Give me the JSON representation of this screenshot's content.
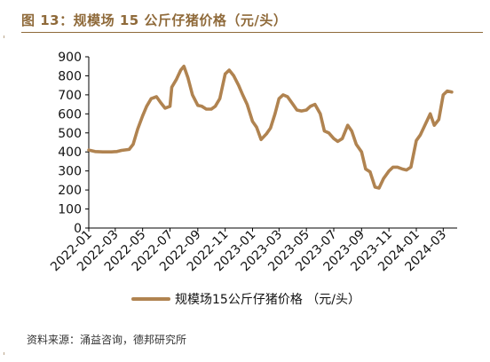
{
  "figure": {
    "title": "图 13：规模场 15 公斤仔猪价格（元/头）",
    "source": "资料来源：涌益咨询，德邦研究所"
  },
  "colors": {
    "series": "#b08350",
    "title": "#8f6a3a"
  },
  "chart_data": {
    "type": "line",
    "title": "",
    "xlabel": "",
    "ylabel": "",
    "ylim": [
      0,
      900
    ],
    "yticks": [
      0,
      100,
      200,
      300,
      400,
      500,
      600,
      700,
      800,
      900
    ],
    "xlim": [
      "2022-01",
      "2024-04"
    ],
    "xticks": [
      "2022-01",
      "2022-03",
      "2022-05",
      "2022-07",
      "2022-09",
      "2022-11",
      "2023-01",
      "2023-03",
      "2023-05",
      "2023-07",
      "2023-09",
      "2023-11",
      "2024-01",
      "2024-03"
    ],
    "legend_position": "bottom",
    "grid": false,
    "series": [
      {
        "name": "规模场15公斤仔猪价格 （元/头）",
        "points": [
          [
            "2022-01-01",
            410
          ],
          [
            "2022-01-15",
            402
          ],
          [
            "2022-02-01",
            400
          ],
          [
            "2022-02-20",
            400
          ],
          [
            "2022-03-05",
            402
          ],
          [
            "2022-03-15",
            408
          ],
          [
            "2022-04-01",
            413
          ],
          [
            "2022-04-10",
            440
          ],
          [
            "2022-04-20",
            520
          ],
          [
            "2022-05-01",
            590
          ],
          [
            "2022-05-10",
            640
          ],
          [
            "2022-05-20",
            680
          ],
          [
            "2022-06-01",
            690
          ],
          [
            "2022-06-10",
            660
          ],
          [
            "2022-06-20",
            630
          ],
          [
            "2022-07-01",
            640
          ],
          [
            "2022-07-05",
            740
          ],
          [
            "2022-07-15",
            780
          ],
          [
            "2022-07-25",
            830
          ],
          [
            "2022-08-01",
            850
          ],
          [
            "2022-08-10",
            790
          ],
          [
            "2022-08-20",
            700
          ],
          [
            "2022-09-01",
            645
          ],
          [
            "2022-09-10",
            640
          ],
          [
            "2022-09-20",
            625
          ],
          [
            "2022-10-01",
            625
          ],
          [
            "2022-10-10",
            640
          ],
          [
            "2022-10-20",
            680
          ],
          [
            "2022-11-01",
            810
          ],
          [
            "2022-11-10",
            830
          ],
          [
            "2022-11-20",
            800
          ],
          [
            "2022-12-01",
            750
          ],
          [
            "2022-12-10",
            700
          ],
          [
            "2022-12-20",
            650
          ],
          [
            "2023-01-01",
            560
          ],
          [
            "2023-01-10",
            530
          ],
          [
            "2023-01-20",
            465
          ],
          [
            "2023-02-01",
            495
          ],
          [
            "2023-02-10",
            525
          ],
          [
            "2023-02-20",
            600
          ],
          [
            "2023-03-01",
            680
          ],
          [
            "2023-03-10",
            700
          ],
          [
            "2023-03-20",
            690
          ],
          [
            "2023-04-01",
            650
          ],
          [
            "2023-04-10",
            620
          ],
          [
            "2023-04-20",
            615
          ],
          [
            "2023-05-01",
            620
          ],
          [
            "2023-05-10",
            640
          ],
          [
            "2023-05-20",
            650
          ],
          [
            "2023-06-01",
            600
          ],
          [
            "2023-06-10",
            510
          ],
          [
            "2023-06-20",
            500
          ],
          [
            "2023-07-01",
            470
          ],
          [
            "2023-07-10",
            455
          ],
          [
            "2023-07-20",
            470
          ],
          [
            "2023-08-01",
            540
          ],
          [
            "2023-08-10",
            510
          ],
          [
            "2023-08-20",
            440
          ],
          [
            "2023-09-01",
            400
          ],
          [
            "2023-09-10",
            310
          ],
          [
            "2023-09-20",
            295
          ],
          [
            "2023-10-01",
            215
          ],
          [
            "2023-10-10",
            210
          ],
          [
            "2023-10-20",
            260
          ],
          [
            "2023-11-01",
            300
          ],
          [
            "2023-11-10",
            320
          ],
          [
            "2023-11-20",
            320
          ],
          [
            "2023-12-01",
            310
          ],
          [
            "2023-12-10",
            305
          ],
          [
            "2023-12-20",
            320
          ],
          [
            "2024-01-01",
            460
          ],
          [
            "2024-01-10",
            490
          ],
          [
            "2024-01-20",
            540
          ],
          [
            "2024-02-01",
            600
          ],
          [
            "2024-02-10",
            540
          ],
          [
            "2024-02-20",
            570
          ],
          [
            "2024-03-01",
            700
          ],
          [
            "2024-03-10",
            720
          ],
          [
            "2024-03-20",
            715
          ]
        ]
      }
    ]
  }
}
